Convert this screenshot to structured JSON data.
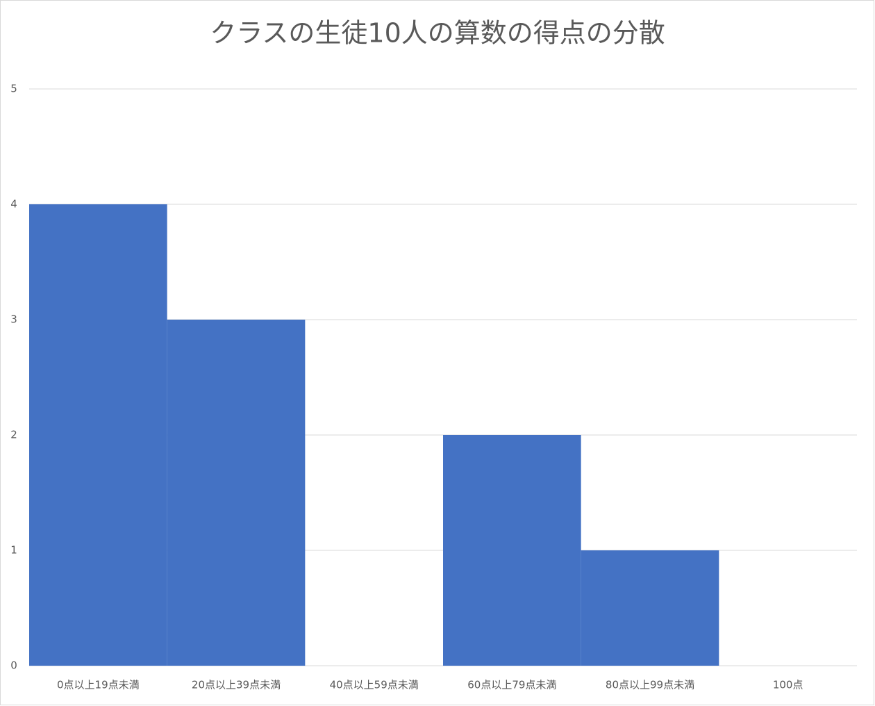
{
  "chart_data": {
    "type": "bar",
    "title": "クラスの生徒10人の算数の得点の分散",
    "categories": [
      "0点以上19点未満",
      "20点以上39点未満",
      "40点以上59点未満",
      "60点以上79点未満",
      "80点以上99点未満",
      "100点"
    ],
    "values": [
      4,
      3,
      0,
      2,
      1,
      0
    ],
    "color": "#4472c4",
    "ylim": [
      0,
      5
    ],
    "yticks": [
      0,
      1,
      2,
      3,
      4,
      5
    ],
    "grid": true
  }
}
